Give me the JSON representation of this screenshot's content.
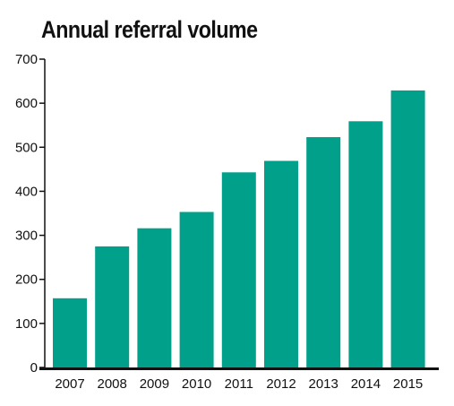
{
  "chart_data": {
    "type": "bar",
    "title": "Annual referral volume",
    "xlabel": "",
    "ylabel": "",
    "categories": [
      "2007",
      "2008",
      "2009",
      "2010",
      "2011",
      "2012",
      "2013",
      "2014",
      "2015"
    ],
    "values": [
      157,
      275,
      316,
      353,
      443,
      469,
      523,
      559,
      629
    ],
    "ylim": [
      0,
      700
    ],
    "yticks": [
      0,
      100,
      200,
      300,
      400,
      500,
      600,
      700
    ],
    "grid": false,
    "legend": "none",
    "bar_color": "#00A08A",
    "axis_color": "#111111"
  }
}
